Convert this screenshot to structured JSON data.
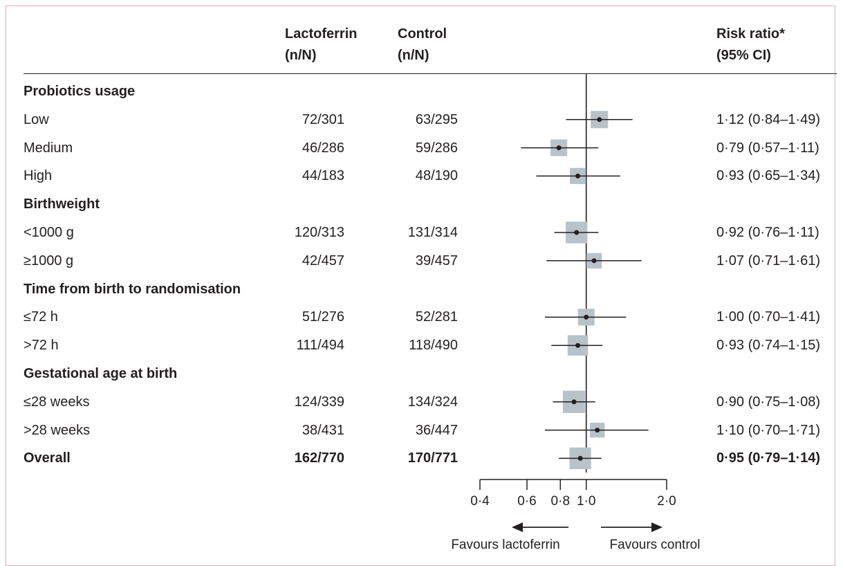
{
  "header": {
    "col_lactoferrin": [
      "Lactoferrin",
      "(n/N)"
    ],
    "col_control": [
      "Control",
      "(n/N)"
    ],
    "col_rr": [
      "Risk ratio*",
      "(95% CI)"
    ]
  },
  "rows": [
    {
      "kind": "group",
      "label": "Probiotics usage"
    },
    {
      "kind": "item",
      "label": "Low",
      "lacto": "72/301",
      "control": "63/295",
      "rr_text": "1·12 (0·84–1·49)"
    },
    {
      "kind": "item",
      "label": "Medium",
      "lacto": "46/286",
      "control": "59/286",
      "rr_text": "0·79 (0·57–1·11)"
    },
    {
      "kind": "item",
      "label": "High",
      "lacto": "44/183",
      "control": "48/190",
      "rr_text": "0·93 (0·65–1·34)"
    },
    {
      "kind": "group",
      "label": "Birthweight"
    },
    {
      "kind": "item",
      "label": "<1000 g",
      "lacto": "120/313",
      "control": "131/314",
      "rr_text": "0·92 (0·76–1·11)"
    },
    {
      "kind": "item",
      "label": "≥1000 g",
      "lacto": "42/457",
      "control": "39/457",
      "rr_text": "1·07 (0·71–1·61)"
    },
    {
      "kind": "group",
      "label": "Time from birth to randomisation"
    },
    {
      "kind": "item",
      "label": "≤72 h",
      "lacto": "51/276",
      "control": "52/281",
      "rr_text": "1·00 (0·70–1·41)"
    },
    {
      "kind": "item",
      "label": ">72 h",
      "lacto": "111/494",
      "control": "118/490",
      "rr_text": "0·93 (0·74–1·15)"
    },
    {
      "kind": "group",
      "label": "Gestational age at birth"
    },
    {
      "kind": "item",
      "label": "≤28 weeks",
      "lacto": "124/339",
      "control": "134/324",
      "rr_text": "0·90 (0·75–1·08)"
    },
    {
      "kind": "item",
      "label": ">28 weeks",
      "lacto": "38/431",
      "control": "36/447",
      "rr_text": "1·10 (0·70–1·71)"
    },
    {
      "kind": "overall",
      "label": "Overall",
      "lacto": "162/770",
      "control": "170/771",
      "rr_text": "0·95 (0·79–1·14)"
    }
  ],
  "chart_data": {
    "type": "forest",
    "scale": "log",
    "reference_line": 1.0,
    "xlim": [
      0.4,
      2.0
    ],
    "ticks": [
      0.4,
      0.6,
      0.8,
      1.0,
      2.0
    ],
    "tick_labels": [
      "0·4",
      "0·6",
      "0·8",
      "1·0",
      "2·0"
    ],
    "points": [
      {
        "label": "Low",
        "rr": 1.12,
        "lo": 0.84,
        "hi": 1.49,
        "weight": 0.5
      },
      {
        "label": "Medium",
        "rr": 0.79,
        "lo": 0.57,
        "hi": 1.11,
        "weight": 0.45
      },
      {
        "label": "High",
        "rr": 0.93,
        "lo": 0.65,
        "hi": 1.34,
        "weight": 0.4
      },
      {
        "label": "<1000 g",
        "rr": 0.92,
        "lo": 0.76,
        "hi": 1.11,
        "weight": 0.85
      },
      {
        "label": "≥1000 g",
        "rr": 1.07,
        "lo": 0.71,
        "hi": 1.61,
        "weight": 0.35
      },
      {
        "label": "≤72 h",
        "rr": 1.0,
        "lo": 0.7,
        "hi": 1.41,
        "weight": 0.45
      },
      {
        "label": ">72 h",
        "rr": 0.93,
        "lo": 0.74,
        "hi": 1.15,
        "weight": 0.75
      },
      {
        "label": "≤28 weeks",
        "rr": 0.9,
        "lo": 0.75,
        "hi": 1.08,
        "weight": 0.9
      },
      {
        "label": ">28 weeks",
        "rr": 1.1,
        "lo": 0.7,
        "hi": 1.71,
        "weight": 0.3
      },
      {
        "label": "Overall",
        "rr": 0.95,
        "lo": 0.79,
        "hi": 1.14,
        "weight": 0.85
      }
    ],
    "favours_left": "Favours lactoferrin",
    "favours_right": "Favours control",
    "colors": {
      "box": "#b8c2c9",
      "line": "#231f20"
    }
  }
}
